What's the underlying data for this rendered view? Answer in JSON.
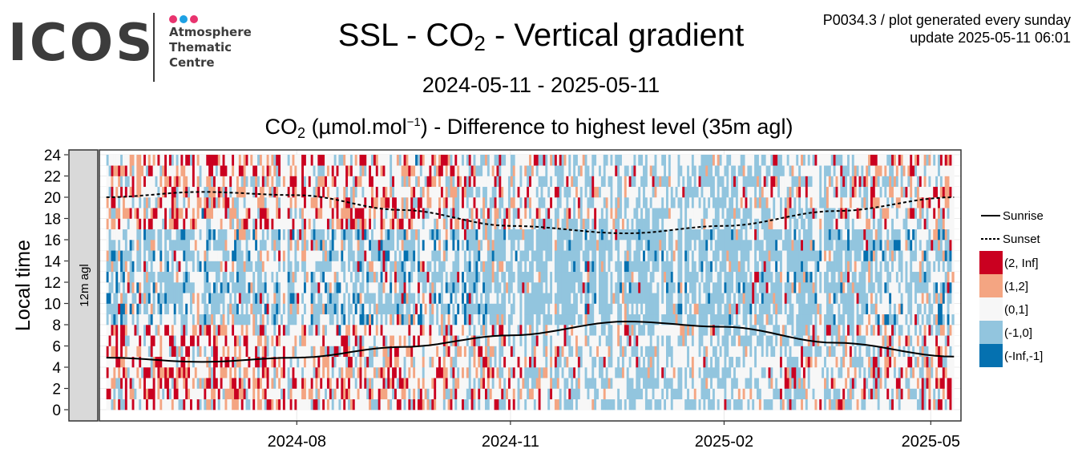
{
  "logo": {
    "text": "ICOS",
    "subtitle_lines": [
      "Atmosphere",
      "Thematic",
      "Centre"
    ],
    "dot_colors": [
      "#e8336e",
      "#1ea1e4",
      "#e8336e"
    ]
  },
  "header": {
    "title_prefix": "SSL - CO",
    "title_sub": "2",
    "title_suffix": " - Vertical gradient",
    "meta_line1": "P0034.3 / plot generated every sunday",
    "meta_line2": "update  2025-05-11 06:01",
    "period": "2024-05-11 - 2025-05-11"
  },
  "subtitle": {
    "prefix": "CO",
    "sub": "2",
    "mid": " (µmol.mol",
    "sup": "−1",
    "suffix": ") - Difference to highest level (35m agl)"
  },
  "chart_data": {
    "type": "heatmap",
    "panel_label": "12m agl",
    "xlabel": "",
    "ylabel": "Local time",
    "x_range": [
      "2024-05-11",
      "2025-05-11"
    ],
    "ylim": [
      0,
      24
    ],
    "yticks": [
      0,
      2,
      4,
      6,
      8,
      10,
      12,
      14,
      16,
      18,
      20,
      22,
      24
    ],
    "xticks": [
      {
        "date": "2024-08-01",
        "label": "2024-08"
      },
      {
        "date": "2024-11-01",
        "label": "2024-11"
      },
      {
        "date": "2025-02-01",
        "label": "2025-02"
      },
      {
        "date": "2025-05-01",
        "label": "2025-05"
      }
    ],
    "grid": true,
    "categories": [
      {
        "label": "(2, Inf]",
        "color": "#ca0020"
      },
      {
        "label": "(1,2]",
        "color": "#f4a582"
      },
      {
        "label": "(0,1]",
        "color": "#f7f7f7"
      },
      {
        "label": "(-1,0]",
        "color": "#92c5de"
      },
      {
        "label": "(-Inf,-1]",
        "color": "#0571b0"
      }
    ],
    "series": [
      {
        "name": "Sunrise",
        "style": "solid",
        "points": [
          [
            "2024-05-11",
            4.9
          ],
          [
            "2024-06-21",
            4.5
          ],
          [
            "2024-08-01",
            4.9
          ],
          [
            "2024-09-15",
            5.9
          ],
          [
            "2024-11-01",
            7.0
          ],
          [
            "2024-12-21",
            8.3
          ],
          [
            "2025-02-01",
            7.8
          ],
          [
            "2025-03-21",
            6.3
          ],
          [
            "2025-05-11",
            5.0
          ]
        ]
      },
      {
        "name": "Sunset",
        "style": "dashed",
        "points": [
          [
            "2024-05-11",
            20.0
          ],
          [
            "2024-06-21",
            20.5
          ],
          [
            "2024-08-01",
            20.2
          ],
          [
            "2024-09-15",
            18.8
          ],
          [
            "2024-11-01",
            17.3
          ],
          [
            "2024-12-21",
            16.6
          ],
          [
            "2025-02-01",
            17.3
          ],
          [
            "2025-03-21",
            18.7
          ],
          [
            "2025-05-11",
            20.0
          ]
        ]
      }
    ],
    "legend_position": "right"
  }
}
